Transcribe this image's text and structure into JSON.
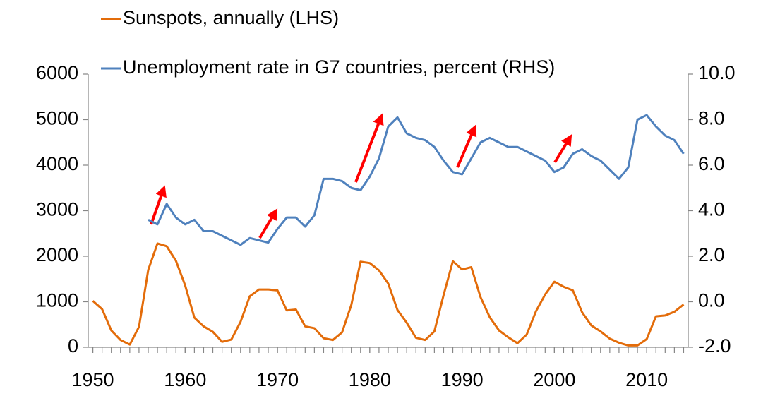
{
  "chart_data": {
    "type": "line",
    "x": [
      1950,
      1951,
      1952,
      1953,
      1954,
      1955,
      1956,
      1957,
      1958,
      1959,
      1960,
      1961,
      1962,
      1963,
      1964,
      1965,
      1966,
      1967,
      1968,
      1969,
      1970,
      1971,
      1972,
      1973,
      1974,
      1975,
      1976,
      1977,
      1978,
      1979,
      1980,
      1981,
      1982,
      1983,
      1984,
      1985,
      1986,
      1987,
      1988,
      1989,
      1990,
      1991,
      1992,
      1993,
      1994,
      1995,
      1996,
      1997,
      1998,
      1999,
      2000,
      2001,
      2002,
      2003,
      2004,
      2005,
      2006,
      2007,
      2008,
      2009,
      2010,
      2011,
      2012,
      2013,
      2014
    ],
    "series": [
      {
        "name": "Sunspots, annually (LHS)",
        "color": "#e36c0a",
        "axis": "y",
        "values": [
          1020,
          840,
          370,
          160,
          60,
          450,
          1700,
          2280,
          2220,
          1900,
          1360,
          650,
          460,
          340,
          120,
          170,
          560,
          1120,
          1270,
          1270,
          1250,
          810,
          830,
          460,
          420,
          200,
          160,
          330,
          930,
          1880,
          1850,
          1690,
          1400,
          820,
          540,
          210,
          160,
          350,
          1150,
          1890,
          1710,
          1760,
          1100,
          660,
          370,
          220,
          90,
          280,
          790,
          1160,
          1440,
          1330,
          1250,
          770,
          480,
          350,
          190,
          100,
          40,
          40,
          180,
          680,
          700,
          780,
          940
        ]
      },
      {
        "name": "Unemployment rate in G7 countries, percent (RHS)",
        "color": "#4f81bd",
        "axis": "y2",
        "values": [
          null,
          null,
          null,
          null,
          null,
          null,
          3.6,
          3.4,
          4.3,
          3.7,
          3.4,
          3.6,
          3.1,
          3.1,
          2.9,
          2.7,
          2.5,
          2.8,
          2.7,
          2.6,
          3.2,
          3.7,
          3.7,
          3.3,
          3.8,
          5.4,
          5.4,
          5.3,
          5.0,
          4.9,
          5.5,
          6.3,
          7.7,
          8.1,
          7.4,
          7.2,
          7.1,
          6.8,
          6.2,
          5.7,
          5.6,
          6.3,
          7.0,
          7.2,
          7.0,
          6.8,
          6.8,
          6.6,
          6.4,
          6.2,
          5.7,
          5.9,
          6.5,
          6.7,
          6.4,
          6.2,
          5.8,
          5.4,
          5.9,
          8.0,
          8.2,
          7.7,
          7.3,
          7.1,
          6.5
        ]
      }
    ],
    "xlim": [
      1949.5,
      2014.5
    ],
    "xticks": [
      1950,
      1960,
      1970,
      1980,
      1990,
      2000,
      2010
    ],
    "ylim": [
      0,
      6000
    ],
    "yticks": [
      0,
      1000,
      2000,
      3000,
      4000,
      5000,
      6000
    ],
    "y2lim": [
      -2,
      10
    ],
    "y2ticks": [
      {
        "value": -2,
        "label": "-2.0"
      },
      {
        "value": 0,
        "label": "0.0"
      },
      {
        "value": 2,
        "label": "2.0"
      },
      {
        "value": 4,
        "label": "4.0"
      },
      {
        "value": 6,
        "label": "6.0"
      },
      {
        "value": 8,
        "label": "8.0"
      },
      {
        "value": 10,
        "label": "10.0"
      }
    ],
    "grid": false
  }
}
